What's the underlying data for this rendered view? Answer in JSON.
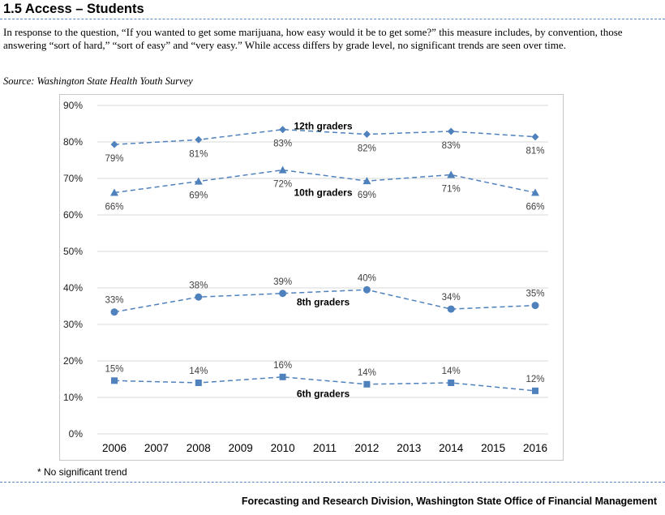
{
  "header": {
    "title": "1.5 Access – Students",
    "intro": "In response to the question, “If you wanted to get some marijuana, how easy would it be to get some?” this measure includes, by convention, those answering “sort of hard,” “sort of easy” and “very easy.” While access differs by grade level, no significant trends are seen over time.",
    "source": "Source: Washington State Health Youth Survey"
  },
  "chart_data": {
    "type": "line",
    "title": "",
    "xlabel": "",
    "ylabel": "",
    "x": [
      2006,
      2007,
      2008,
      2009,
      2010,
      2011,
      2012,
      2013,
      2014,
      2015,
      2016
    ],
    "x_ticks": [
      "2006",
      "2007",
      "2008",
      "2009",
      "2010",
      "2011",
      "2012",
      "2013",
      "2014",
      "2015",
      "2016"
    ],
    "y_ticks": [
      "0%",
      "10%",
      "20%",
      "30%",
      "40%",
      "50%",
      "60%",
      "70%",
      "80%",
      "90%"
    ],
    "ylim": [
      0,
      90
    ],
    "grid": "horizontal",
    "line_color": "#4f81bd",
    "line_style": "dashed",
    "series": [
      {
        "name": "12th graders",
        "marker": "diamond",
        "x": [
          2006,
          2008,
          2010,
          2012,
          2014,
          2016
        ],
        "values": [
          79.3,
          80.6,
          83.4,
          82.1,
          82.9,
          81.4
        ],
        "labels": [
          "79%",
          "81%",
          "83%",
          "82%",
          "83%",
          "81%"
        ],
        "label_pos": [
          "below",
          "below",
          "below",
          "below",
          "below",
          "below"
        ]
      },
      {
        "name": "10th graders",
        "marker": "triangle",
        "x": [
          2006,
          2008,
          2010,
          2012,
          2014,
          2016
        ],
        "values": [
          66.1,
          69.2,
          72.3,
          69.3,
          71.0,
          66.1
        ],
        "labels": [
          "66%",
          "69%",
          "72%",
          "69%",
          "71%",
          "66%"
        ],
        "label_pos": [
          "below",
          "below",
          "below",
          "below",
          "below",
          "below"
        ]
      },
      {
        "name": "8th graders",
        "marker": "circle",
        "x": [
          2006,
          2008,
          2010,
          2012,
          2014,
          2016
        ],
        "values": [
          33.4,
          37.5,
          38.5,
          39.5,
          34.2,
          35.2
        ],
        "labels": [
          "33%",
          "38%",
          "39%",
          "40%",
          "34%",
          "35%"
        ],
        "label_pos": [
          "above",
          "above",
          "above",
          "above",
          "above",
          "above"
        ]
      },
      {
        "name": "6th graders",
        "marker": "square",
        "x": [
          2006,
          2008,
          2010,
          2012,
          2014,
          2016
        ],
        "values": [
          14.6,
          14.0,
          15.6,
          13.6,
          14.0,
          11.8
        ],
        "labels": [
          "15%",
          "14%",
          "16%",
          "14%",
          "14%",
          "12%"
        ],
        "label_pos": [
          "above",
          "above",
          "above",
          "above",
          "above",
          "above"
        ]
      }
    ]
  },
  "footnote": "* No significant trend",
  "footer": "Forecasting and Research Division, Washington State Office of Financial Management"
}
